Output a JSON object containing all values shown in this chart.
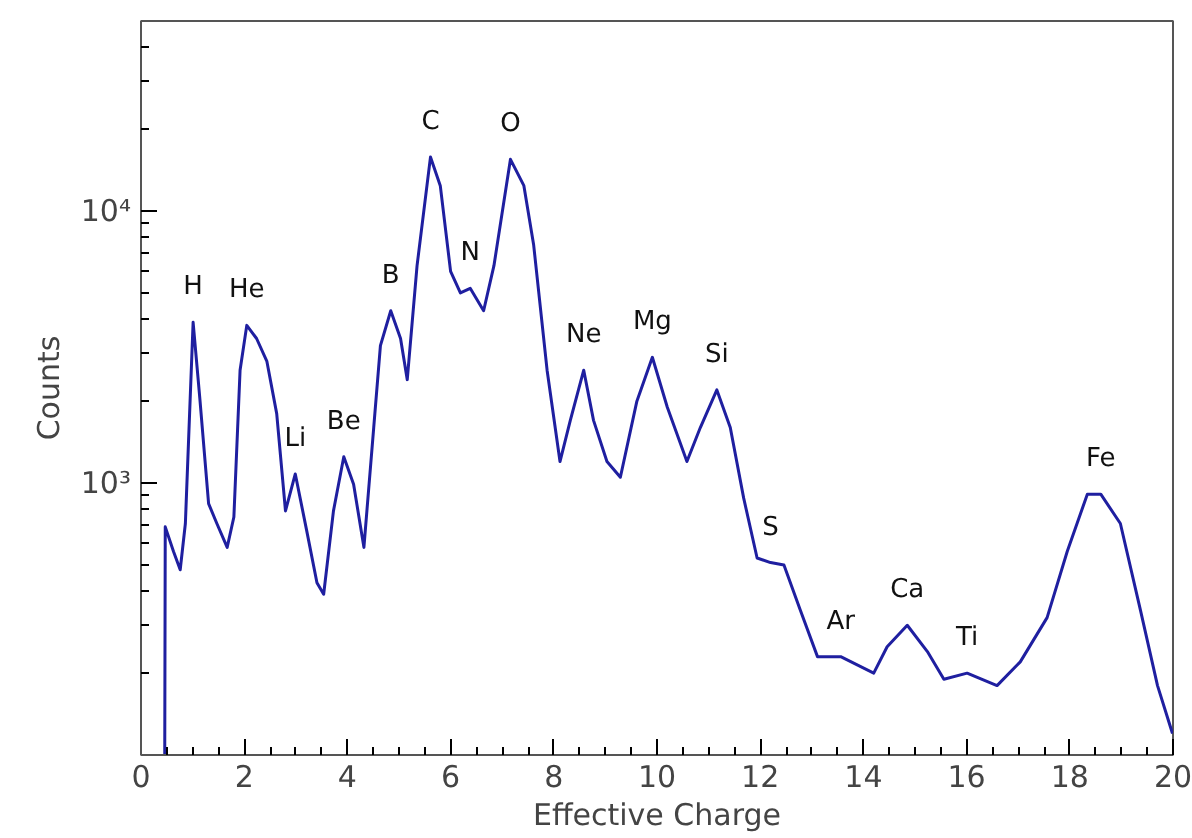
{
  "chart_data": {
    "type": "line",
    "xlabel": "Effective Charge",
    "ylabel": "Counts",
    "log": "y",
    "grid": false,
    "marker": "none",
    "line_style": "solid",
    "xlim": [
      0,
      20
    ],
    "xticks": [
      0,
      2,
      4,
      6,
      8,
      10,
      12,
      14,
      16,
      18,
      20
    ],
    "ylim": [
      100,
      50000
    ],
    "yticks": [
      {
        "value": 200,
        "label": null
      },
      {
        "value": 300,
        "label": null
      },
      {
        "value": 400,
        "label": null
      },
      {
        "value": 500,
        "label": null
      },
      {
        "value": 600,
        "label": null
      },
      {
        "value": 700,
        "label": null
      },
      {
        "value": 800,
        "label": null
      },
      {
        "value": 900,
        "label": null
      },
      {
        "value": 1000,
        "label": "10³"
      },
      {
        "value": 2000,
        "label": null
      },
      {
        "value": 3000,
        "label": null
      },
      {
        "value": 4000,
        "label": null
      },
      {
        "value": 5000,
        "label": null
      },
      {
        "value": 6000,
        "label": null
      },
      {
        "value": 7000,
        "label": null
      },
      {
        "value": 8000,
        "label": null
      },
      {
        "value": 9000,
        "label": null
      },
      {
        "value": 10000,
        "label": "10⁴"
      },
      {
        "value": 20000,
        "label": null
      },
      {
        "value": 30000,
        "label": null
      },
      {
        "value": 40000,
        "label": null
      }
    ],
    "series": [
      {
        "color": "#1f1fa0",
        "x": [
          0.46,
          0.47,
          0.63,
          0.76,
          0.86,
          1.01,
          1.14,
          1.31,
          1.47,
          1.67,
          1.8,
          1.92,
          2.05,
          2.24,
          2.44,
          2.63,
          2.8,
          2.99,
          3.21,
          3.41,
          3.54,
          3.73,
          3.93,
          4.12,
          4.32,
          4.51,
          4.64,
          4.84,
          5.03,
          5.16,
          5.35,
          5.61,
          5.8,
          6.0,
          6.19,
          6.38,
          6.64,
          6.84,
          7.16,
          7.42,
          7.61,
          7.87,
          8.12,
          8.32,
          8.58,
          8.77,
          9.03,
          9.29,
          9.61,
          9.91,
          10.2,
          10.58,
          10.84,
          11.16,
          11.42,
          11.68,
          11.94,
          12.2,
          12.46,
          12.78,
          13.11,
          13.56,
          14.2,
          14.46,
          14.85,
          15.24,
          15.56,
          16.01,
          16.59,
          17.04,
          17.56,
          17.95,
          18.34,
          18.6,
          18.98,
          19.37,
          19.7,
          19.99
        ],
        "values": [
          100,
          690,
          560,
          480,
          710,
          3900,
          2050,
          840,
          710,
          580,
          750,
          2600,
          3800,
          3400,
          2800,
          1800,
          790,
          1080,
          670,
          430,
          390,
          790,
          1250,
          990,
          580,
          1600,
          3200,
          4300,
          3400,
          2400,
          6300,
          15800,
          12400,
          6000,
          5000,
          5200,
          4300,
          6300,
          15500,
          12400,
          7500,
          2600,
          1200,
          1700,
          2600,
          1700,
          1200,
          1050,
          2000,
          2900,
          1900,
          1200,
          1600,
          2200,
          1600,
          880,
          530,
          510,
          500,
          340,
          230,
          230,
          200,
          250,
          300,
          240,
          190,
          200,
          180,
          220,
          320,
          560,
          910,
          910,
          710,
          340,
          180,
          120
        ]
      }
    ],
    "annotations": [
      {
        "text": "H",
        "x": 1.01,
        "y": 3900
      },
      {
        "text": "He",
        "x": 2.05,
        "y": 3800
      },
      {
        "text": "Li",
        "x": 2.99,
        "y": 1080
      },
      {
        "text": "Be",
        "x": 3.93,
        "y": 1250
      },
      {
        "text": "B",
        "x": 4.84,
        "y": 4300
      },
      {
        "text": "C",
        "x": 5.61,
        "y": 15800
      },
      {
        "text": "N",
        "x": 6.38,
        "y": 5200
      },
      {
        "text": "O",
        "x": 7.16,
        "y": 15500
      },
      {
        "text": "Ne",
        "x": 8.58,
        "y": 2600
      },
      {
        "text": "Mg",
        "x": 9.91,
        "y": 2900
      },
      {
        "text": "Si",
        "x": 11.16,
        "y": 2200
      },
      {
        "text": "S",
        "x": 12.2,
        "y": 510
      },
      {
        "text": "Ar",
        "x": 13.56,
        "y": 230
      },
      {
        "text": "Ca",
        "x": 14.85,
        "y": 300
      },
      {
        "text": "Ti",
        "x": 16.01,
        "y": 200
      },
      {
        "text": "Fe",
        "x": 18.6,
        "y": 910
      }
    ]
  }
}
